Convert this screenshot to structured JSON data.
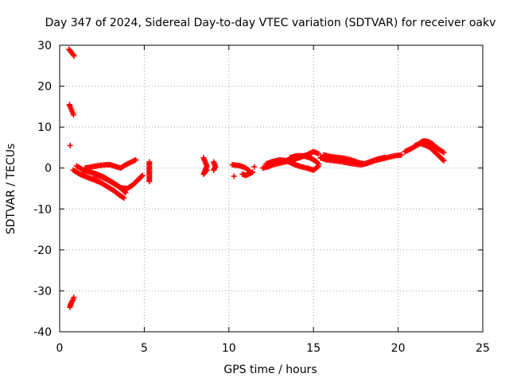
{
  "chart_data": {
    "type": "scatter",
    "title": "Day 347 of 2024, Sidereal Day-to-day VTEC variation (SDTVAR) for receiver oakv",
    "xlabel": "GPS time / hours",
    "ylabel": "SDTVAR / TECUs",
    "xlim": [
      0,
      25
    ],
    "ylim": [
      -40,
      30
    ],
    "xticks": [
      0,
      5,
      10,
      15,
      20,
      25
    ],
    "yticks": [
      -40,
      -30,
      -20,
      -10,
      0,
      10,
      20,
      30
    ],
    "grid": true,
    "marker": "+",
    "series_color": "#ff0000",
    "segments": [
      {
        "x": [
          0.55,
          0.6,
          0.65,
          0.7,
          0.75,
          0.8,
          0.85
        ],
        "y": [
          29.0,
          28.8,
          28.5,
          28.2,
          28.0,
          27.7,
          27.4
        ]
      },
      {
        "x": [
          0.58,
          0.62,
          0.66,
          0.7,
          0.74,
          0.78,
          0.82
        ],
        "y": [
          15.5,
          15.0,
          14.6,
          14.2,
          13.8,
          13.4,
          13.0
        ]
      },
      {
        "x": [
          0.62
        ],
        "y": [
          5.5
        ]
      },
      {
        "x": [
          0.6,
          0.64,
          0.68,
          0.72,
          0.76,
          0.8,
          0.84
        ],
        "y": [
          -34.0,
          -33.5,
          -33.0,
          -32.7,
          -32.4,
          -32.0,
          -31.6
        ]
      },
      {
        "x": [
          0.8,
          1.2,
          1.6,
          2.0,
          2.4,
          2.8,
          3.2,
          3.5,
          3.8
        ],
        "y": [
          -0.5,
          -1.5,
          -2.2,
          -2.8,
          -3.5,
          -4.5,
          -5.5,
          -6.5,
          -7.3
        ]
      },
      {
        "x": [
          1.0,
          1.4,
          1.8,
          2.2,
          2.6,
          3.0,
          3.4,
          3.7,
          3.9
        ],
        "y": [
          0.5,
          -0.5,
          -1.0,
          -1.5,
          -2.2,
          -3.2,
          -4.2,
          -5.2,
          -6.0
        ]
      },
      {
        "x": [
          1.5,
          1.9,
          2.3,
          2.7,
          3.0,
          3.3,
          3.6,
          3.9,
          4.2,
          4.5
        ],
        "y": [
          0.0,
          0.3,
          0.6,
          0.8,
          0.8,
          0.4,
          0.0,
          0.8,
          1.4,
          2.0
        ]
      },
      {
        "x": [
          2.0,
          2.4,
          2.8,
          3.2,
          3.6,
          4.0,
          4.3,
          4.6,
          4.9
        ],
        "y": [
          -1.5,
          -2.0,
          -2.8,
          -3.8,
          -4.8,
          -5.0,
          -4.2,
          -3.0,
          -1.8
        ]
      },
      {
        "x": [
          5.3,
          5.3
        ],
        "y": [
          1.5,
          -3.3
        ]
      },
      {
        "x": [
          8.5,
          8.6,
          8.7,
          8.5,
          8.6,
          8.7
        ],
        "y": [
          2.5,
          1.5,
          0.5,
          -1.5,
          -1.0,
          -0.5
        ]
      },
      {
        "x": [
          9.1,
          9.2,
          9.1
        ],
        "y": [
          1.5,
          0.3,
          -0.5
        ]
      },
      {
        "x": [
          10.2,
          10.6,
          10.9,
          11.2
        ],
        "y": [
          0.8,
          0.6,
          0.2,
          -0.6
        ]
      },
      {
        "x": [
          10.3
        ],
        "y": [
          -2.0
        ]
      },
      {
        "x": [
          10.8,
          11.0,
          11.2,
          11.4
        ],
        "y": [
          -1.5,
          -1.8,
          -1.4,
          -1.0
        ]
      },
      {
        "x": [
          11.5
        ],
        "y": [
          0.3
        ]
      },
      {
        "x": [
          12.0,
          12.3,
          12.6,
          13.0,
          13.4,
          13.8,
          14.2,
          14.6,
          15.0,
          15.3
        ],
        "y": [
          0.0,
          0.3,
          0.8,
          1.2,
          1.6,
          2.0,
          2.6,
          3.2,
          4.0,
          3.5
        ]
      },
      {
        "x": [
          12.2,
          12.6,
          13.0,
          13.4,
          13.8,
          14.2,
          14.6,
          15.0,
          15.3
        ],
        "y": [
          1.0,
          1.6,
          2.0,
          1.8,
          1.0,
          0.4,
          0.0,
          -0.5,
          0.5
        ]
      },
      {
        "x": [
          13.6,
          14.0,
          14.4,
          14.8,
          15.1,
          15.3
        ],
        "y": [
          2.5,
          3.0,
          3.0,
          2.5,
          1.8,
          1.0
        ]
      },
      {
        "x": [
          15.4,
          15.8,
          16.2,
          16.6,
          17.0,
          17.4,
          17.8,
          18.2,
          18.6,
          19.0,
          19.4,
          19.8,
          20.2
        ],
        "y": [
          2.5,
          2.0,
          1.8,
          1.6,
          1.3,
          1.0,
          0.8,
          1.2,
          1.8,
          2.2,
          2.6,
          3.0,
          3.2
        ]
      },
      {
        "x": [
          15.6,
          16.0,
          16.4,
          16.8,
          17.2,
          17.6,
          18.0,
          18.4,
          18.8,
          19.2
        ],
        "y": [
          3.2,
          2.8,
          2.6,
          2.4,
          2.0,
          1.4,
          1.0,
          1.6,
          2.2,
          2.6
        ]
      },
      {
        "x": [
          20.4,
          20.8,
          21.2,
          21.4,
          21.6,
          21.8,
          22.0,
          22.2,
          22.4,
          22.7
        ],
        "y": [
          4.0,
          4.8,
          5.8,
          6.5,
          6.6,
          6.4,
          6.0,
          5.2,
          4.6,
          3.8
        ]
      },
      {
        "x": [
          21.0,
          21.3,
          21.6,
          21.9,
          22.1,
          22.3,
          22.5,
          22.7
        ],
        "y": [
          5.5,
          6.0,
          5.6,
          5.0,
          4.2,
          3.4,
          2.6,
          1.8
        ]
      }
    ]
  }
}
